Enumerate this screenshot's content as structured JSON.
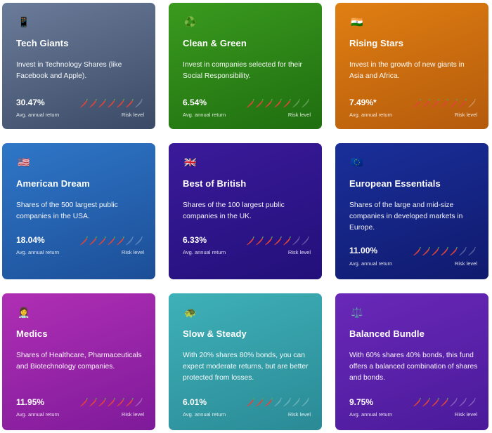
{
  "cards": [
    {
      "id": "tech-giants",
      "icon": "📱",
      "icon_name": "mobile-phone-icon",
      "title": "Tech Giants",
      "description": "Invest in Technology Shares (like Facebook and Apple).",
      "return": "30.47%",
      "return_label": "Avg. annual return",
      "risk_label": "Risk level",
      "risk_level": 6,
      "risk_max": 7,
      "gradient": [
        "#6b7c9a",
        "#3a4a66"
      ]
    },
    {
      "id": "clean-green",
      "icon": "♻️",
      "icon_name": "recycle-icon",
      "title": "Clean & Green",
      "description": "Invest in companies selected for their Social Responsibility.",
      "return": "6.54%",
      "return_label": "Avg. annual return",
      "risk_label": "Risk level",
      "risk_level": 5,
      "risk_max": 7,
      "gradient": [
        "#3a9a1e",
        "#1f6e10"
      ]
    },
    {
      "id": "rising-stars",
      "icon": "🇮🇳",
      "icon_name": "india-flag-icon",
      "title": "Rising Stars",
      "description": "Invest in the growth of new giants in Asia and Africa.",
      "return": "7.49%*",
      "return_label": "Avg. annual return",
      "risk_label": "Risk level",
      "risk_level": 6,
      "risk_max": 7,
      "gradient": [
        "#e07f12",
        "#b45a0c"
      ]
    },
    {
      "id": "american-dream",
      "icon": "🇺🇸",
      "icon_name": "usa-flag-icon",
      "title": "American Dream",
      "description": "Shares of the 500 largest public companies in the USA.",
      "return": "18.04%",
      "return_label": "Avg. annual return",
      "risk_label": "Risk level",
      "risk_level": 5,
      "risk_max": 7,
      "gradient": [
        "#2f77c8",
        "#1c4e97"
      ]
    },
    {
      "id": "best-of-british",
      "icon": "🇬🇧",
      "icon_name": "uk-flag-icon",
      "title": "Best of British",
      "description": "Shares of the 100 largest public companies in the UK.",
      "return": "6.33%",
      "return_label": "Avg. annual return",
      "risk_label": "Risk level",
      "risk_level": 5,
      "risk_max": 7,
      "gradient": [
        "#3b1a9a",
        "#22107a"
      ]
    },
    {
      "id": "european-essentials",
      "icon": "🇪🇺",
      "icon_name": "eu-flag-icon",
      "title": "European Essentials",
      "description": "Shares of the large and mid-size companies in developed markets in Europe.",
      "return": "11.00%",
      "return_label": "Avg. annual return",
      "risk_label": "Risk level",
      "risk_level": 5,
      "risk_max": 7,
      "gradient": [
        "#1a2f9a",
        "#101a6e"
      ]
    },
    {
      "id": "medics",
      "icon": "👩‍⚕️",
      "icon_name": "health-worker-icon",
      "title": "Medics",
      "description": "Shares of Healthcare, Pharmaceuticals and Biotechnology companies.",
      "return": "11.95%",
      "return_label": "Avg. annual return",
      "risk_label": "Risk level",
      "risk_level": 6,
      "risk_max": 7,
      "gradient": [
        "#b02fb4",
        "#7e1a9a"
      ]
    },
    {
      "id": "slow-steady",
      "icon": "🐢",
      "icon_name": "turtle-icon",
      "title": "Slow & Steady",
      "description": "With 20% shares 80% bonds, you can expect moderate returns, but are better protected from losses.",
      "return": "6.01%",
      "return_label": "Avg. annual return",
      "risk_label": "Risk level",
      "risk_level": 3,
      "risk_max": 7,
      "gradient": [
        "#3fb1b8",
        "#2a8a96"
      ]
    },
    {
      "id": "balanced-bundle",
      "icon": "⚖️",
      "icon_name": "balance-scale-icon",
      "title": "Balanced Bundle",
      "description": "With 60% shares 40% bonds, this fund offers a balanced combination of shares and bonds.",
      "return": "9.75%",
      "return_label": "Avg. annual return",
      "risk_label": "Risk level",
      "risk_level": 4,
      "risk_max": 7,
      "gradient": [
        "#6a28b8",
        "#4a1a9a"
      ]
    }
  ],
  "colors": {
    "chili_active": "#e2443a",
    "chili_inactive": "rgba(255,255,255,0.28)"
  }
}
